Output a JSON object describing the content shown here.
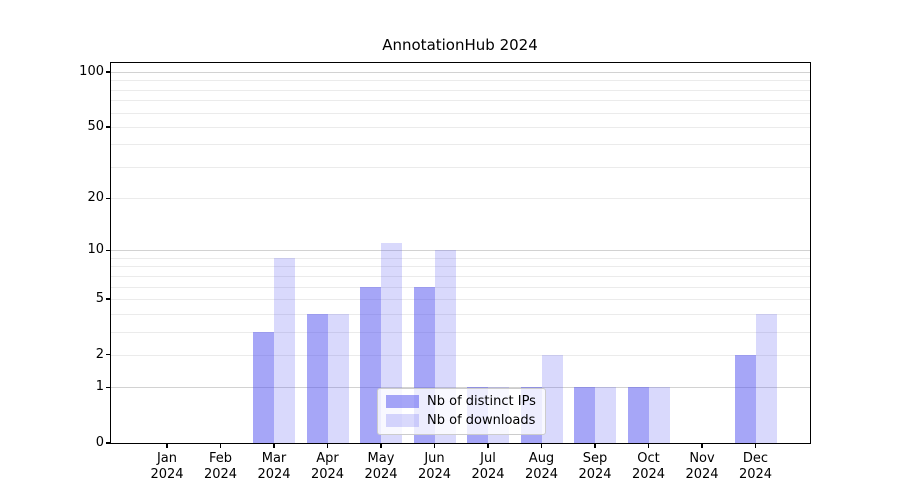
{
  "chart_data": {
    "type": "bar",
    "title": "AnnotationHub 2024",
    "x": [
      "Jan 2024",
      "Feb 2024",
      "Mar 2024",
      "Apr 2024",
      "May 2024",
      "Jun 2024",
      "Jul 2024",
      "Aug 2024",
      "Sep 2024",
      "Oct 2024",
      "Nov 2024",
      "Dec 2024"
    ],
    "x_tick_labels": [
      [
        "Jan",
        "2024"
      ],
      [
        "Feb",
        "2024"
      ],
      [
        "Mar",
        "2024"
      ],
      [
        "Apr",
        "2024"
      ],
      [
        "May",
        "2024"
      ],
      [
        "Jun",
        "2024"
      ],
      [
        "Jul",
        "2024"
      ],
      [
        "Aug",
        "2024"
      ],
      [
        "Sep",
        "2024"
      ],
      [
        "Oct",
        "2024"
      ],
      [
        "Nov",
        "2024"
      ],
      [
        "Dec",
        "2024"
      ]
    ],
    "series": [
      {
        "name": "Nb of distinct IPs",
        "color": "rgba(80,80,240,0.51)",
        "values": [
          0,
          0,
          3,
          4,
          6,
          6,
          1,
          1,
          1,
          1,
          0,
          2
        ]
      },
      {
        "name": "Nb of downloads",
        "color": "rgba(80,80,240,0.22)",
        "values": [
          0,
          0,
          9,
          4,
          11,
          10,
          1,
          2,
          1,
          1,
          0,
          4
        ]
      }
    ],
    "yscale": "log1p",
    "ylim": [
      0,
      112
    ],
    "y_ticks": [
      {
        "value": 100,
        "label": "100"
      },
      {
        "value": 50,
        "label": "50"
      },
      {
        "value": 20,
        "label": "20"
      },
      {
        "value": 10,
        "label": "10"
      },
      {
        "value": 5,
        "label": "5"
      },
      {
        "value": 2,
        "label": "2"
      },
      {
        "value": 1,
        "label": "1"
      },
      {
        "value": 0,
        "label": "0"
      }
    ],
    "major_gridlines": [
      1,
      10,
      100
    ],
    "minor_gridlines": [
      2,
      3,
      4,
      5,
      6,
      7,
      8,
      9,
      20,
      30,
      40,
      50,
      60,
      70,
      80,
      90
    ],
    "grid": true,
    "legend_position": "lower center",
    "xlabel": "",
    "ylabel": ""
  },
  "colors": {
    "background": "#ffffff",
    "bar_distinct_ips_flat": "#a6a6f7",
    "bar_downloads_flat": "#d9d9f8",
    "major_grid": "#d2d2d2",
    "minor_grid": "#ebebeb",
    "axis": "#000000",
    "legend_border": "#cccccc"
  }
}
